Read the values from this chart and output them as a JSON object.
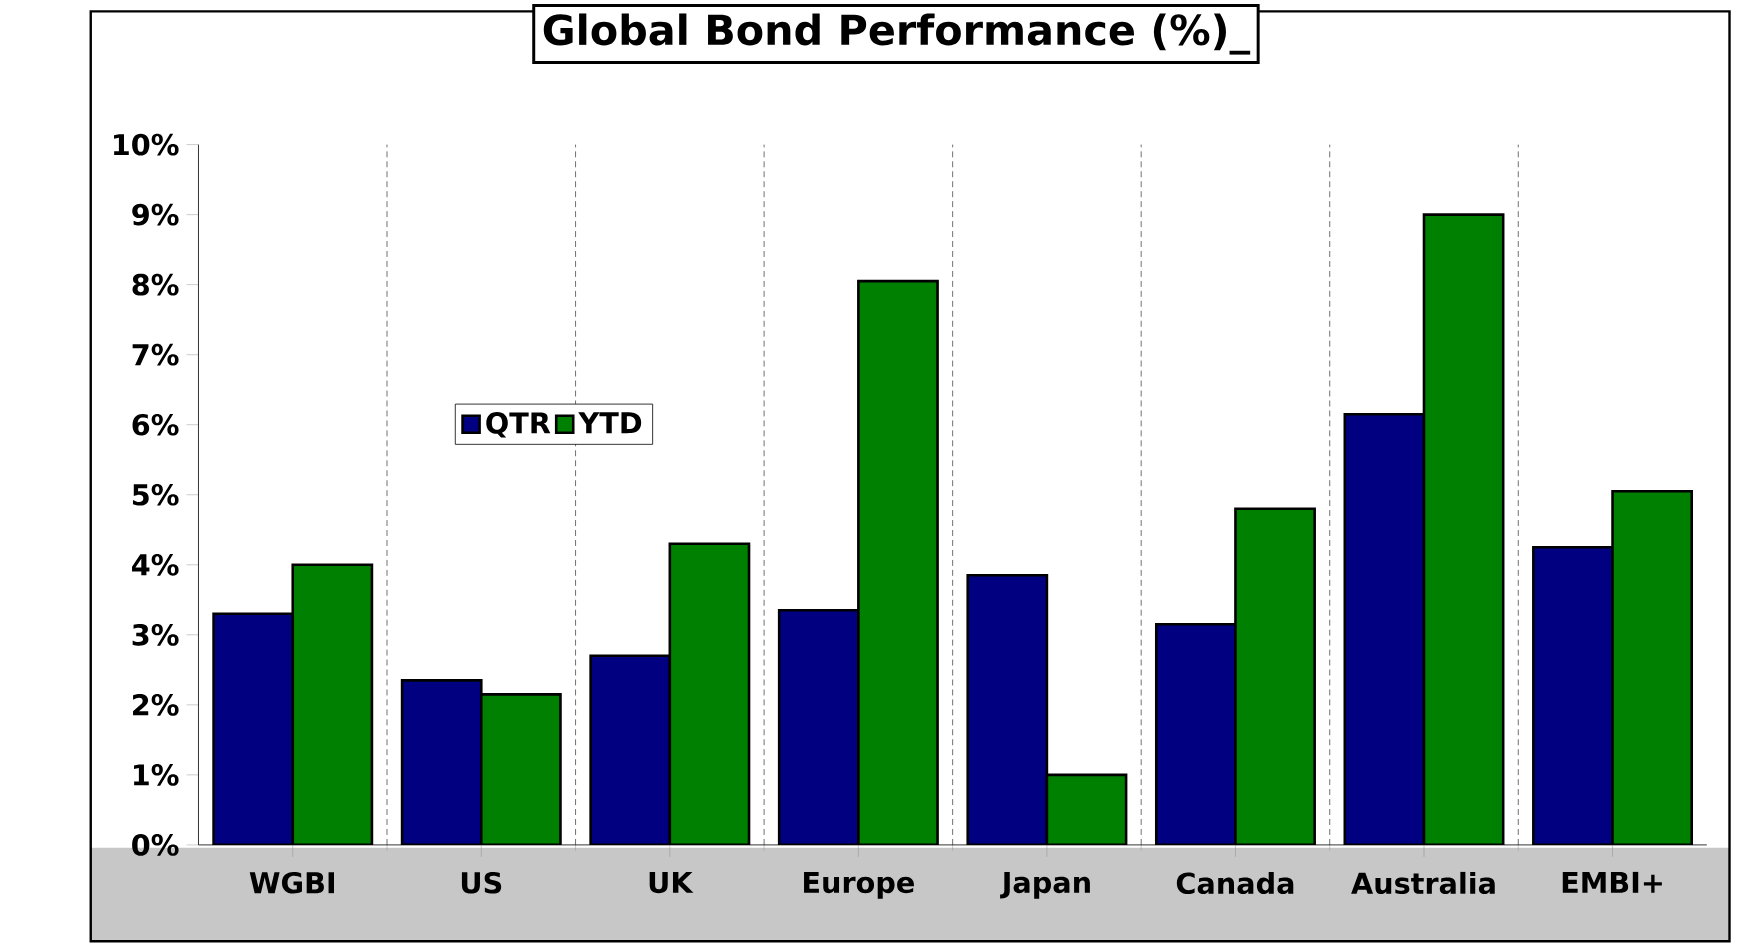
{
  "chart_data": {
    "type": "bar",
    "title": "Global Bond Performance (%)_",
    "categories": [
      "WGBI",
      "US",
      "UK",
      "Europe",
      "Japan",
      "Canada",
      "Australia",
      "EMBI+"
    ],
    "series": [
      {
        "name": "QTR",
        "color": "#000080",
        "values": [
          3.3,
          2.35,
          2.7,
          3.35,
          3.85,
          3.15,
          6.15,
          4.25
        ]
      },
      {
        "name": "YTD",
        "color": "#008000",
        "values": [
          4.0,
          2.15,
          4.3,
          8.05,
          1.0,
          4.8,
          9.0,
          5.05
        ]
      }
    ],
    "ylim": [
      0,
      10
    ],
    "yticks": [
      {
        "value": 0,
        "label": "0%"
      },
      {
        "value": 1,
        "label": "1%"
      },
      {
        "value": 2,
        "label": "2%"
      },
      {
        "value": 3,
        "label": "3%"
      },
      {
        "value": 4,
        "label": "4%"
      },
      {
        "value": 5,
        "label": "5%"
      },
      {
        "value": 6,
        "label": "6%"
      },
      {
        "value": 7,
        "label": "7%"
      },
      {
        "value": 8,
        "label": "8%"
      },
      {
        "value": 9,
        "label": "9%"
      },
      {
        "value": 10,
        "label": "10%"
      }
    ],
    "grid": "x",
    "legend": "top left"
  }
}
